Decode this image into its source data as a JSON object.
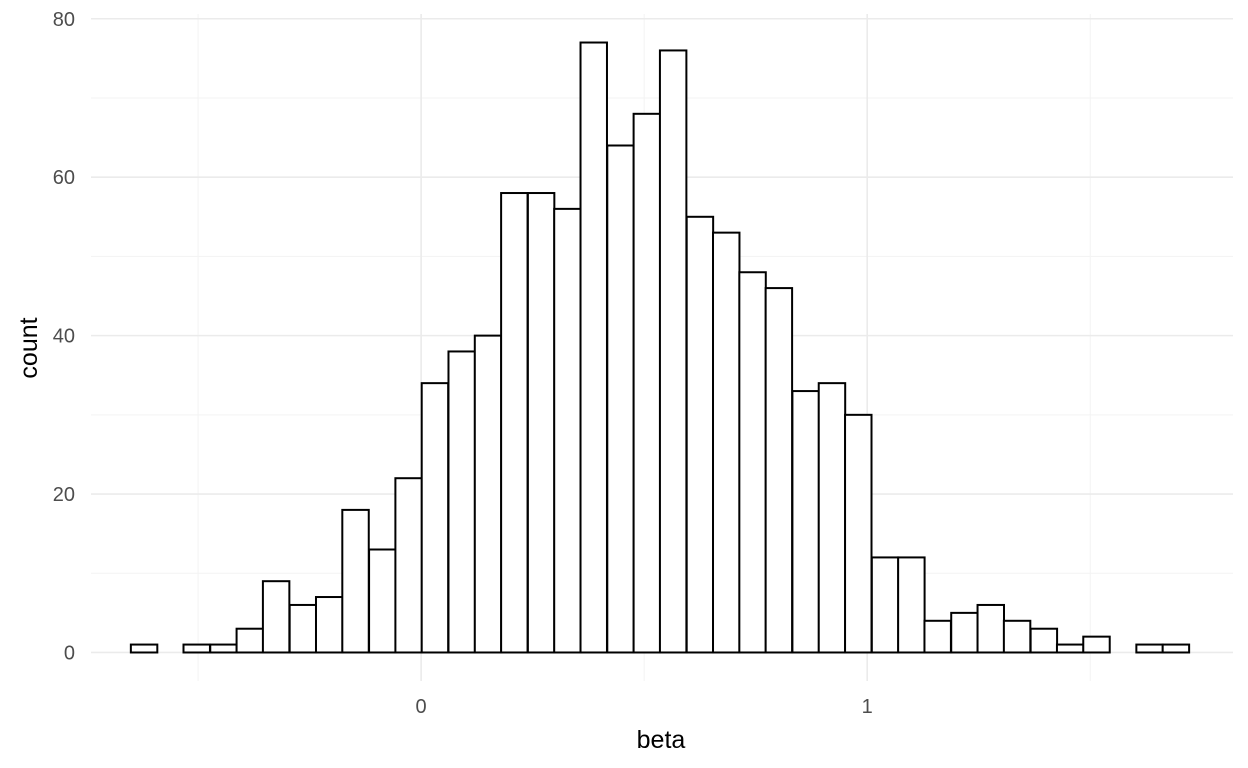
{
  "chart_data": {
    "type": "bar",
    "subtype": "histogram",
    "xlabel": "beta",
    "ylabel": "count",
    "bin_width": 0.0593,
    "bin_centers": [
      -0.621,
      -0.562,
      -0.503,
      -0.443,
      -0.384,
      -0.325,
      -0.265,
      -0.206,
      -0.147,
      -0.087,
      -0.028,
      0.031,
      0.091,
      0.15,
      0.209,
      0.269,
      0.328,
      0.387,
      0.447,
      0.506,
      0.565,
      0.625,
      0.684,
      0.743,
      0.802,
      0.862,
      0.921,
      0.98,
      1.04,
      1.099,
      1.158,
      1.218,
      1.277,
      1.336,
      1.396,
      1.455,
      1.514,
      1.574,
      1.633,
      1.692
    ],
    "values": [
      1,
      0,
      1,
      1,
      3,
      9,
      6,
      7,
      18,
      13,
      22,
      34,
      38,
      40,
      58,
      58,
      56,
      77,
      64,
      68,
      76,
      55,
      53,
      48,
      46,
      33,
      34,
      30,
      12,
      12,
      4,
      5,
      6,
      4,
      3,
      1,
      2,
      0,
      1,
      1
    ],
    "xlim": [
      -0.74,
      1.82
    ],
    "ylim": [
      -3.6,
      80.6
    ],
    "x_ticks": [
      0,
      1
    ],
    "x_tick_labels": [
      "0",
      "1"
    ],
    "x_minor_ticks": [
      -0.5,
      0.5,
      1.5
    ],
    "y_ticks": [
      0,
      20,
      40,
      60,
      80
    ],
    "y_tick_labels": [
      "0",
      "20",
      "40",
      "60",
      "80"
    ],
    "y_minor_ticks": [
      10,
      30,
      50,
      70
    ],
    "bar_fill": "#ffffff",
    "bar_stroke": "#000000",
    "grid": true,
    "grid_color": "#ebebeb",
    "legend": "none"
  }
}
